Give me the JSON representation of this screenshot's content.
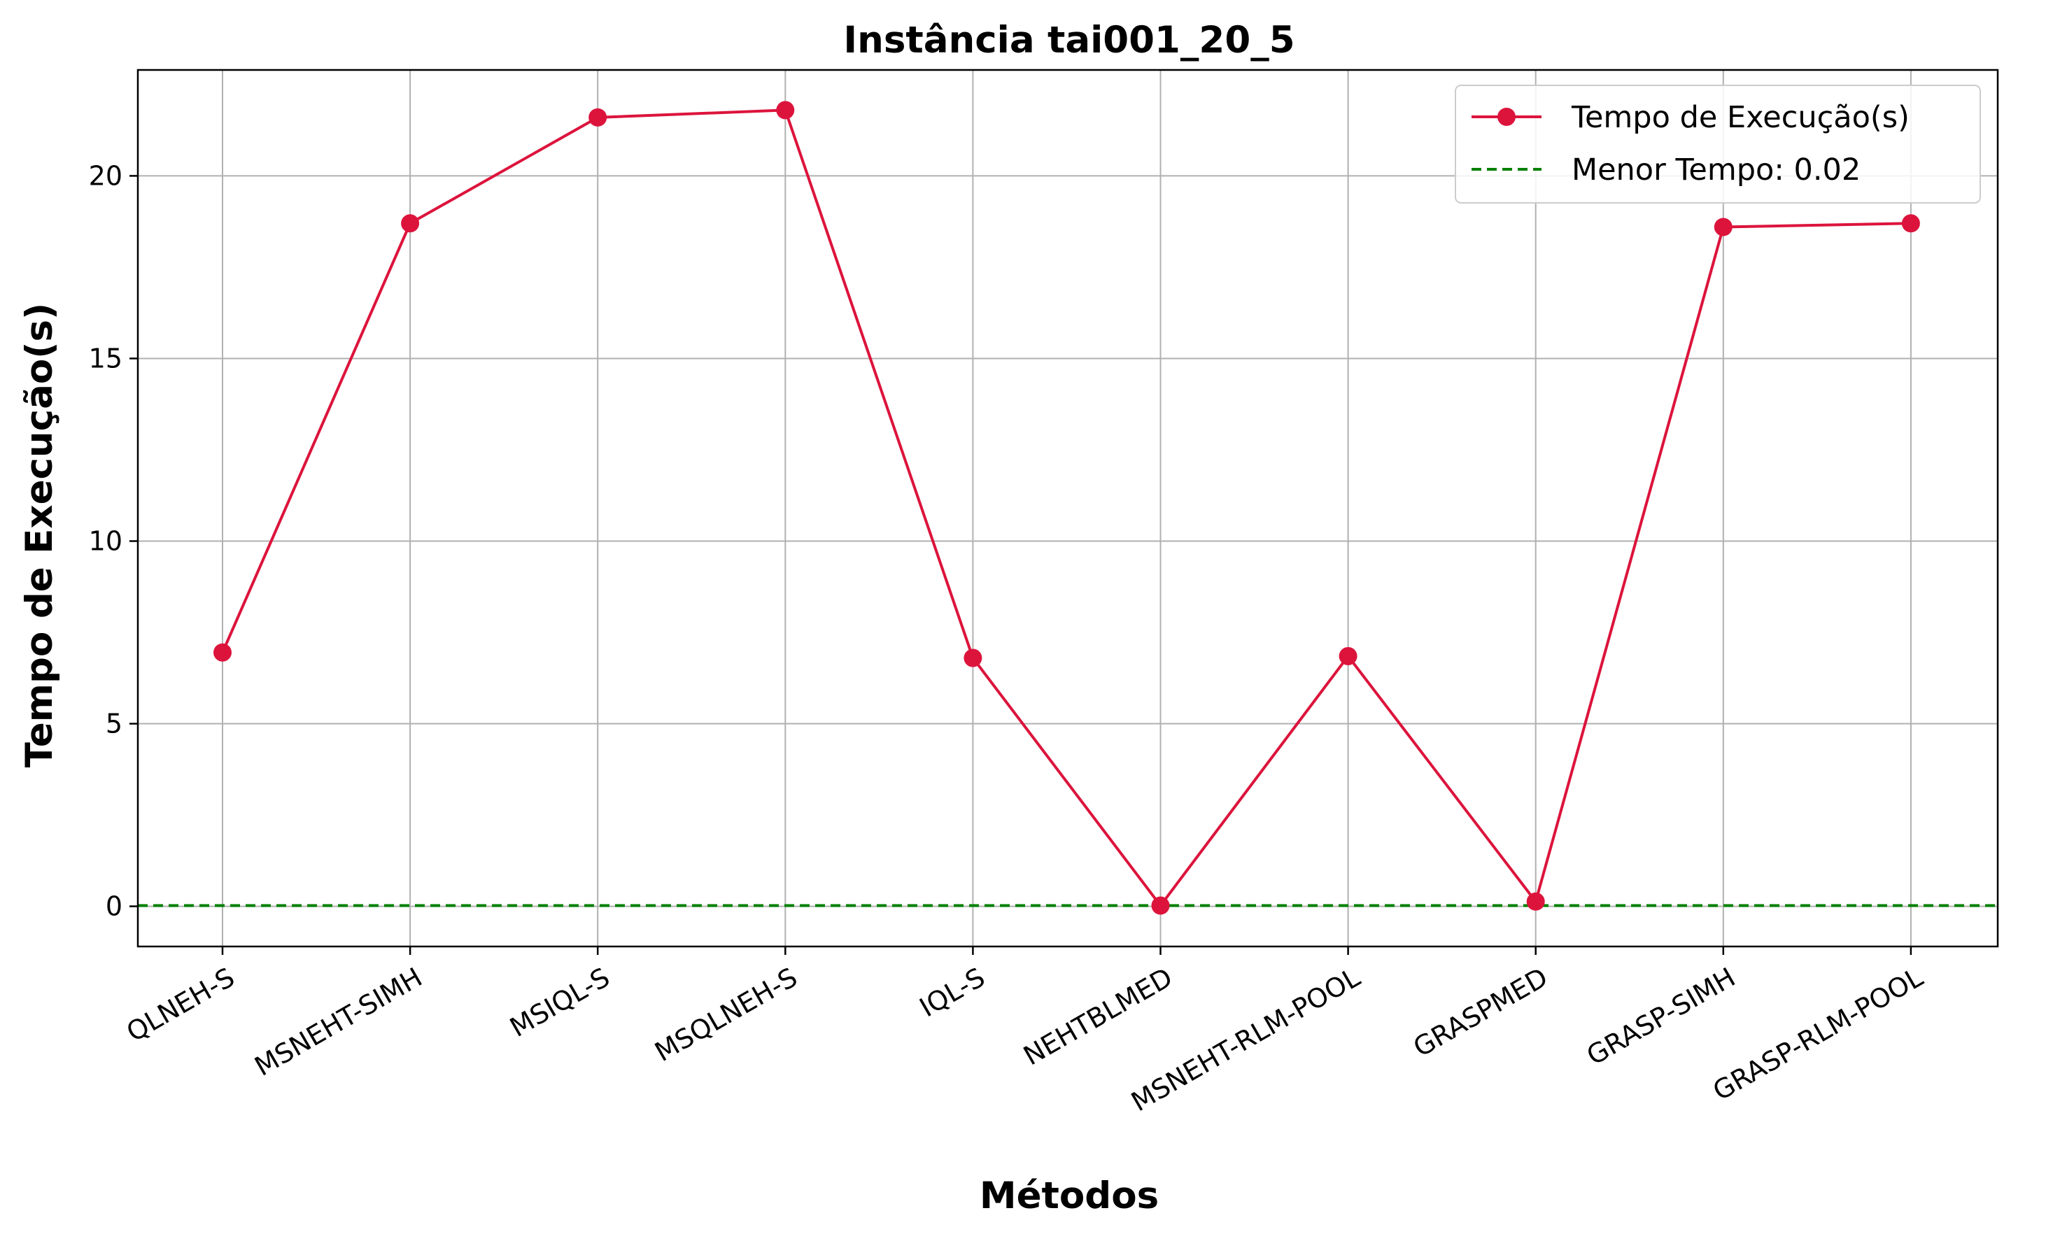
{
  "chart_data": {
    "type": "line",
    "title": "Instância tai001_20_5",
    "xlabel": "Métodos",
    "ylabel": "Tempo de Execução(s)",
    "categories": [
      "QLNEH-S",
      "MSNEHT-SIMH",
      "MSIQL-S",
      "MSQLNEH-S",
      "IQL-S",
      "NEHTBLMED",
      "MSNEHT-RLM-POOL",
      "GRASPMED",
      "GRASP-SIMH",
      "GRASP-RLM-POOL"
    ],
    "series": [
      {
        "name": "Tempo de Execução(s)",
        "values": [
          6.95,
          18.7,
          21.6,
          21.8,
          6.8,
          0.02,
          6.85,
          0.13,
          18.6,
          18.7
        ],
        "color": "#dc143c",
        "marker": "circle"
      }
    ],
    "reference_line": {
      "label": "Menor Tempo: 0.02",
      "value": 0.02,
      "color": "#008000",
      "style": "dashed"
    },
    "ylim": [
      -1.1,
      22.9
    ],
    "yticks": [
      "0",
      "5",
      "10",
      "15",
      "20"
    ],
    "grid": true,
    "legend_position": "top-right"
  }
}
